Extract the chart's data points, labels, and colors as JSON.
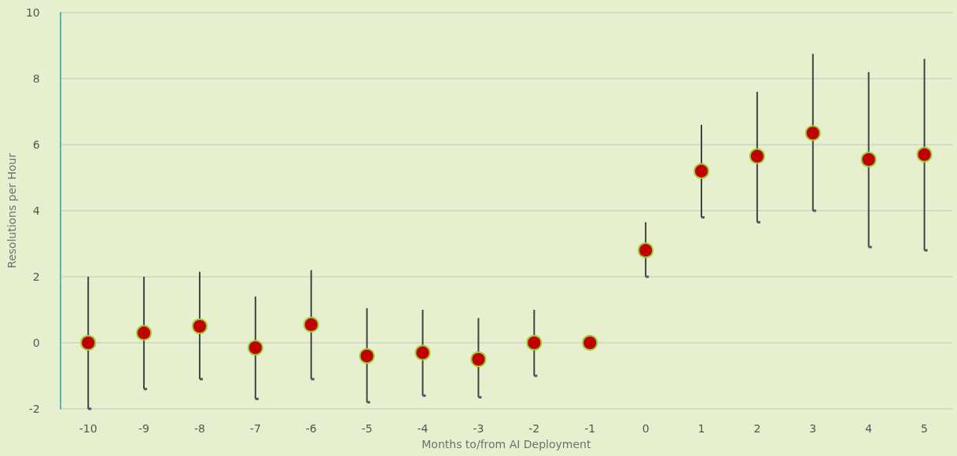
{
  "chart_data": {
    "type": "scatter",
    "xlabel": "Months to/from AI Deployment",
    "ylabel": "Resolutions per Hour",
    "categories": [
      "-10",
      "-9",
      "-8",
      "-7",
      "-6",
      "-5",
      "-4",
      "-3",
      "-2",
      "-1",
      "0",
      "1",
      "2",
      "3",
      "4",
      "5"
    ],
    "series": [
      {
        "color": "#c00000",
        "values": [
          0,
          0.3,
          0.5,
          -0.15,
          0.55,
          -0.4,
          -0.3,
          -0.5,
          0,
          0,
          2.8,
          5.2,
          5.65,
          6.35,
          5.55,
          5.7
        ],
        "errors": [
          [
            -2,
            2
          ],
          [
            -1.4,
            2
          ],
          [
            -1.1,
            2.15
          ],
          [
            -1.7,
            1.4
          ],
          [
            -1.1,
            2.2
          ],
          [
            -1.8,
            1.05
          ],
          [
            -1.6,
            1
          ],
          [
            -1.65,
            0.75
          ],
          [
            -1,
            1
          ],
          null,
          [
            2,
            3.65
          ],
          [
            3.8,
            6.6
          ],
          [
            3.65,
            7.6
          ],
          [
            4,
            8.75
          ],
          [
            2.9,
            8.2
          ],
          [
            2.8,
            8.6
          ]
        ]
      }
    ],
    "ylim": [
      -2,
      10
    ],
    "yticks": [
      -2,
      0,
      2,
      4,
      6,
      8,
      10
    ],
    "grid": "y",
    "marker": "circle"
  }
}
